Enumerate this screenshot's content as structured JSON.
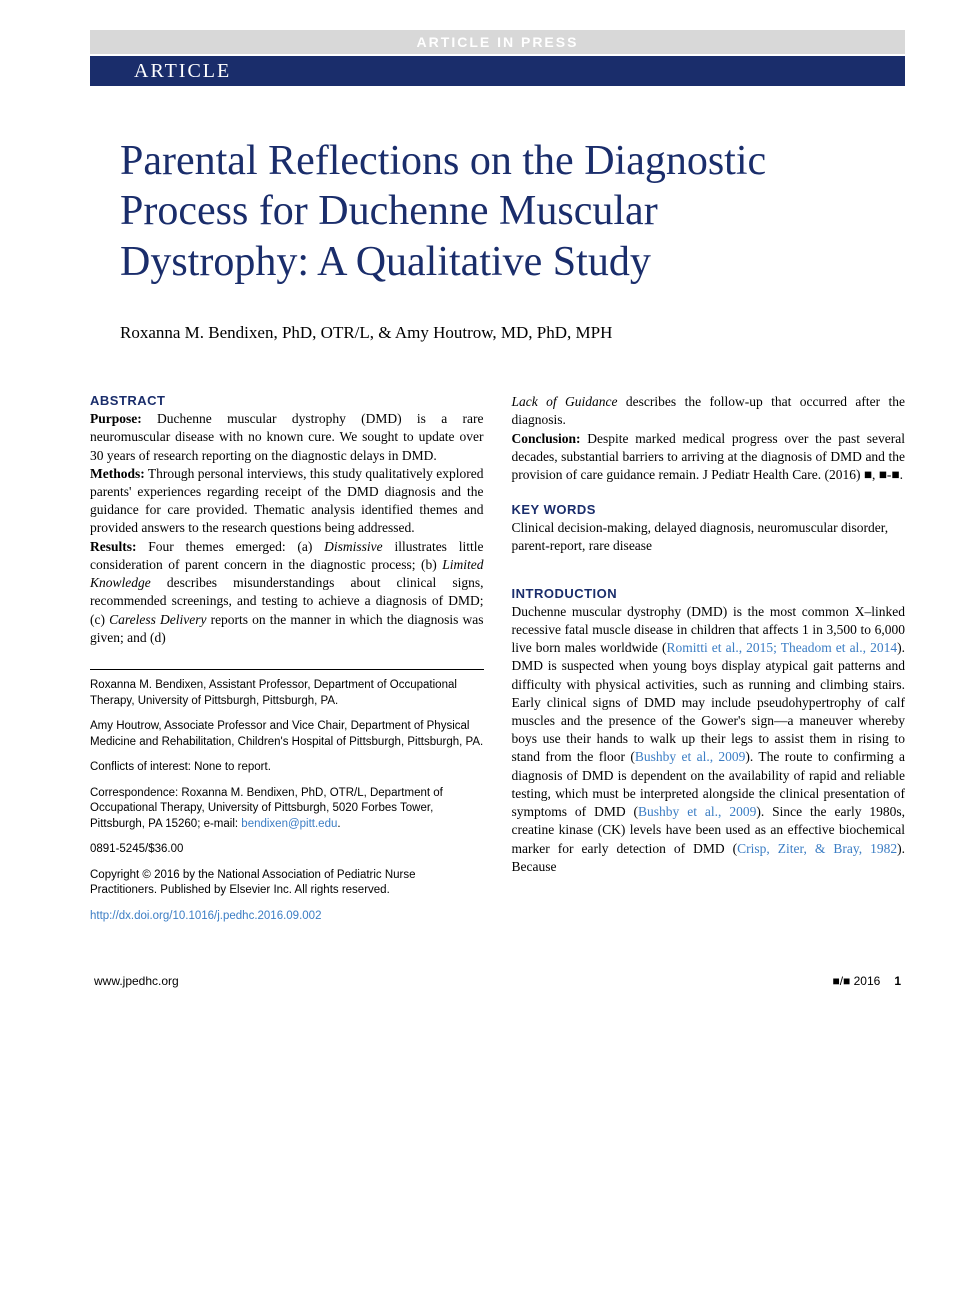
{
  "press_bar": "ARTICLE IN PRESS",
  "article_tab": "ARTICLE",
  "title": "Parental Reflections on the Diagnostic Process for Duchenne Muscular Dystrophy: A Qualitative Study",
  "authors": "Roxanna M. Bendixen, PhD, OTR/L, & Amy Houtrow, MD, PhD, MPH",
  "abstract_head": "ABSTRACT",
  "abstract": {
    "purpose_label": "Purpose:",
    "purpose": " Duchenne muscular dystrophy (DMD) is a rare neuromuscular disease with no known cure. We sought to update over 30 years of research reporting on the diagnostic delays in DMD.",
    "methods_label": "Methods:",
    "methods": " Through personal interviews, this study qualitatively explored parents' experiences regarding receipt of the DMD diagnosis and the guidance for care provided. Thematic analysis identified themes and provided answers to the research questions being addressed.",
    "results_label": "Results:",
    "results_a": " Four themes emerged: (a) ",
    "results_a_em": "Dismissive",
    "results_a2": " illustrates little consideration of parent concern in the diagnostic process; (b) ",
    "results_b_em": "Limited Knowledge",
    "results_b2": " describes misunderstandings about clinical signs, recommended screenings, and testing to achieve a diagnosis of DMD; (c) ",
    "results_c_em": "Careless Delivery",
    "results_c2": " reports on the manner in which the diagnosis was given; and (d) ",
    "results_d_em": "Lack of Guidance",
    "results_d2": " describes the follow-up that occurred after the diagnosis.",
    "conclusion_label": "Conclusion:",
    "conclusion": " Despite marked medical progress over the past several decades, substantial barriers to arriving at the diagnosis of DMD and the provision of care guidance remain. J Pediatr Health Care. (2016) ■, ■-■."
  },
  "keywords_head": "KEY WORDS",
  "keywords": "Clinical decision-making, delayed diagnosis, neuromuscular disorder, parent-report, rare disease",
  "affil": {
    "a1": "Roxanna M. Bendixen, Assistant Professor, Department of Occupational Therapy, University of Pittsburgh, Pittsburgh, PA.",
    "a2": "Amy Houtrow, Associate Professor and Vice Chair, Department of Physical Medicine and Rehabilitation, Children's Hospital of Pittsburgh, Pittsburgh, PA.",
    "coi": "Conflicts of interest: None to report.",
    "corr_pre": "Correspondence: Roxanna M. Bendixen, PhD, OTR/L, Department of Occupational Therapy, University of Pittsburgh, 5020 Forbes Tower, Pittsburgh, PA 15260; e-mail: ",
    "corr_email": "bendixen@pitt.edu",
    "corr_post": ".",
    "issn": "0891-5245/$36.00",
    "copyright": "Copyright © 2016 by the National Association of Pediatric Nurse Practitioners. Published by Elsevier Inc. All rights reserved.",
    "doi": "http://dx.doi.org/10.1016/j.pedhc.2016.09.002"
  },
  "intro_head": "INTRODUCTION",
  "intro": {
    "p1a": "Duchenne muscular dystrophy (DMD) is the most common X–linked recessive fatal muscle disease in children that affects 1 in 3,500 to 6,000 live born males worldwide (",
    "r1": "Romitti et al., 2015; Theadom et al., 2014",
    "p1b": "). DMD is suspected when young boys display atypical gait patterns and difficulty with physical activities, such as running and climbing stairs. Early clinical signs of DMD may include pseudohypertrophy of calf muscles and the presence of the Gower's sign—a maneuver whereby boys use their hands to walk up their legs to assist them in rising to stand from the floor (",
    "r2": "Bushby et al., 2009",
    "p1c": "). The route to confirming a diagnosis of DMD is dependent on the availability of rapid and reliable testing, which must be interpreted alongside the clinical presentation of symptoms of DMD (",
    "r3": "Bushby et al., 2009",
    "p1d": "). Since the early 1980s, creatine kinase (CK) levels have been used as an effective biochemical marker for early detection of DMD (",
    "r4": "Crisp, Ziter, & Bray, 1982",
    "p1e": "). Because"
  },
  "footer": {
    "site": "www.jpedhc.org",
    "issue": "■/■ 2016",
    "page": "1"
  },
  "colors": {
    "blue": "#1a2d6b",
    "link": "#3b7dc4",
    "grey": "#d8d8d8"
  }
}
